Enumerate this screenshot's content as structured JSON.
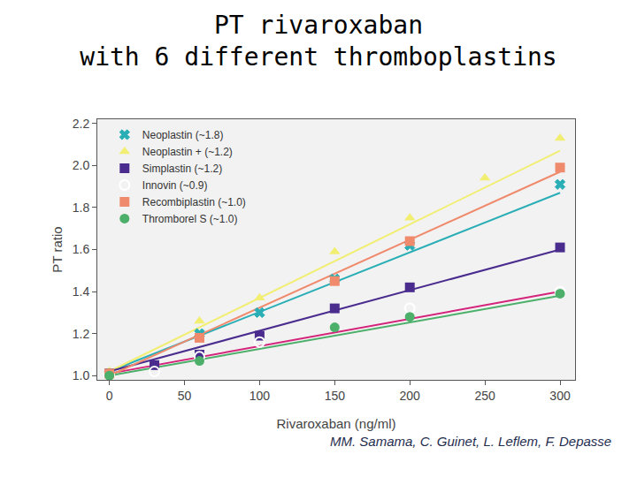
{
  "chart_data": {
    "type": "scatter",
    "title": "PT rivaroxaban\nwith 6 different thromboplastins",
    "x_label": "Rivaroxaban (ng/ml)",
    "y_label": "PT ratio",
    "annotations": [
      "MM. Samama, C. Guinet, L. Leflem, F. Depasse"
    ],
    "xlim": [
      -8,
      310
    ],
    "xticks": [
      0,
      50,
      100,
      150,
      200,
      250,
      300
    ],
    "ylim": [
      0.98,
      2.22
    ],
    "yticks": [
      {
        "value": 1,
        "label": "1.0"
      },
      1.2,
      1.4,
      1.6,
      1.8,
      {
        "value": 2,
        "label": "2.0"
      },
      2.2
    ],
    "grid": false,
    "legend": "upper left",
    "series": [
      {
        "name": "Neoplastin (~1.8)",
        "color": "#2aaeb6",
        "marker": "x",
        "x": [
          0,
          60,
          100,
          150,
          200,
          300
        ],
        "values": [
          1.01,
          1.2,
          1.3,
          1.46,
          1.62,
          1.91
        ],
        "fit": {
          "x": [
            0,
            300
          ],
          "values": [
            1.02,
            1.87
          ]
        }
      },
      {
        "name": "Neoplastin + (~1.2)",
        "color": "#f2ee72",
        "marker": "triangle",
        "x": [
          0,
          60,
          100,
          150,
          200,
          250,
          300
        ],
        "values": [
          1.02,
          1.26,
          1.37,
          1.59,
          1.75,
          1.94,
          2.13
        ],
        "fit": {
          "x": [
            0,
            300
          ],
          "values": [
            1.02,
            2.07
          ]
        }
      },
      {
        "name": "Simplastin (~1.2)",
        "color": "#4a2c8e",
        "marker": "square",
        "x": [
          0,
          30,
          60,
          100,
          150,
          200,
          300
        ],
        "values": [
          1.01,
          1.05,
          1.1,
          1.19,
          1.32,
          1.42,
          1.61
        ],
        "fit": {
          "x": [
            0,
            300
          ],
          "values": [
            1.02,
            1.6
          ]
        }
      },
      {
        "name": "Innovin (~0.9)",
        "color": "#d4237a",
        "marker": "open circle",
        "x": [
          0,
          30,
          60,
          100,
          200,
          300
        ],
        "values": [
          1.0,
          1.02,
          1.09,
          1.16,
          1.32,
          1.4
        ],
        "fit": {
          "x": [
            0,
            300
          ],
          "values": [
            1.01,
            1.4
          ]
        }
      },
      {
        "name": "Recombiplastin (~1.0)",
        "color": "#f08a6c",
        "marker": "square",
        "x": [
          0,
          60,
          150,
          200,
          300
        ],
        "values": [
          1.01,
          1.18,
          1.45,
          1.64,
          1.99
        ],
        "fit": {
          "x": [
            0,
            300
          ],
          "values": [
            1.0,
            1.97
          ]
        }
      },
      {
        "name": "Thromborel S (~1.0)",
        "color": "#4caf6a",
        "marker": "circle",
        "x": [
          0,
          60,
          150,
          200,
          300
        ],
        "values": [
          1.0,
          1.07,
          1.23,
          1.28,
          1.39
        ],
        "fit": {
          "x": [
            0,
            300
          ],
          "values": [
            1.0,
            1.38
          ]
        }
      }
    ]
  }
}
